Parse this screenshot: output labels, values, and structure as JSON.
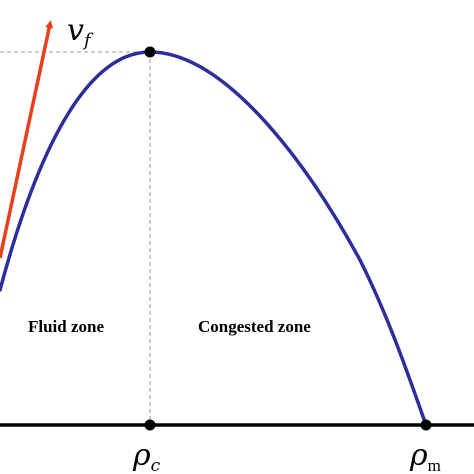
{
  "labels": {
    "fluid_zone": "Fluid zone",
    "congested_zone": "Congested zone",
    "vf_symbol": "v",
    "vf_subscript": "f",
    "rho_c_symbol": "ρ",
    "rho_c_subscript": "c",
    "rho_m_symbol": "ρ",
    "rho_m_subscript": "m"
  },
  "colors": {
    "curve": "#2e2e9a",
    "arrow": "#e8401c",
    "axis": "#000000",
    "guide": "#9a9a9a",
    "point": "#000000"
  }
}
